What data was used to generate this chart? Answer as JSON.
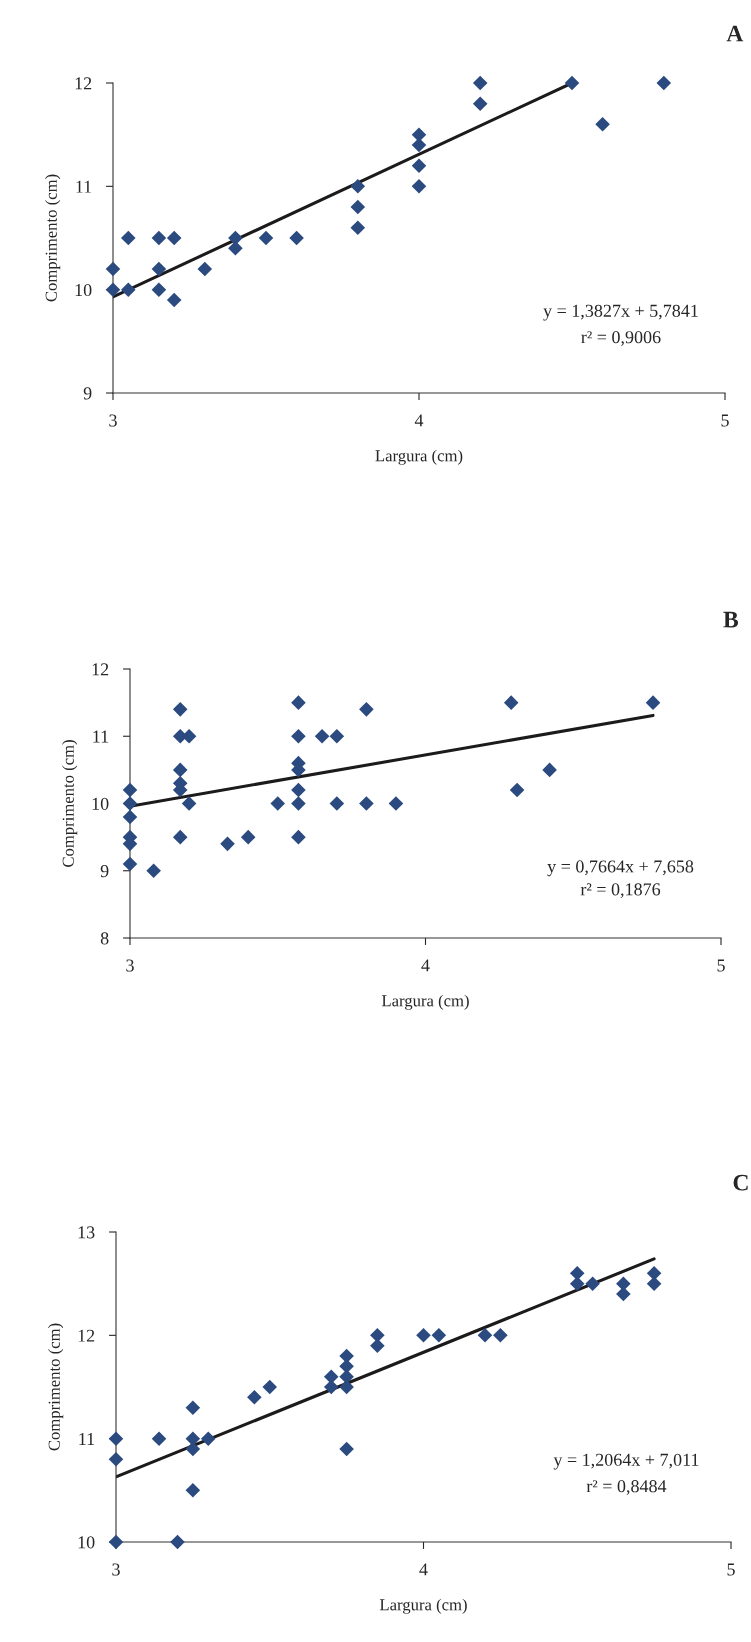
{
  "chart_data": [
    {
      "type": "scatter",
      "title": "A",
      "xlabel": "Largura (cm)",
      "ylabel": "Comprimento (cm)",
      "xlim": [
        3,
        5
      ],
      "xticks": [
        3,
        4,
        5
      ],
      "ylim": [
        9,
        12
      ],
      "yticks": [
        9,
        10,
        11,
        12
      ],
      "annotations": [
        "y = 1,3827x + 5,7841",
        "r² = 0,9006"
      ],
      "series": [
        {
          "marker": "diamond",
          "color": "#2b4a80",
          "x": [
            3.0,
            3.0,
            3.05,
            3.05,
            3.15,
            3.15,
            3.15,
            3.2,
            3.2,
            3.3,
            3.4,
            3.4,
            3.5,
            3.6,
            3.8,
            3.8,
            3.8,
            4.0,
            4.0,
            4.0,
            4.0,
            4.2,
            4.2,
            4.5,
            4.6,
            4.8
          ],
          "values": [
            10.2,
            10.0,
            10.5,
            10.0,
            10.5,
            10.2,
            10.0,
            10.5,
            9.9,
            10.2,
            10.5,
            10.4,
            10.5,
            10.5,
            11.0,
            10.8,
            10.6,
            11.5,
            11.4,
            11.2,
            11.0,
            12.0,
            11.8,
            12.0,
            11.6,
            12.0
          ]
        },
        {
          "type": "line",
          "color": "#1c1a1a",
          "x": [
            3.0,
            4.5
          ],
          "values": [
            9.93,
            12.0
          ]
        }
      ]
    },
    {
      "type": "scatter",
      "title": "B",
      "xlabel": "Largura (cm)",
      "ylabel": "Comprimento (cm)",
      "xlim": [
        3,
        5
      ],
      "xticks": [
        3,
        4,
        5
      ],
      "ylim": [
        8,
        12
      ],
      "yticks": [
        8,
        9,
        10,
        11,
        12
      ],
      "annotations": [
        "y = 0,7664x + 7,658",
        "r² = 0,1876"
      ],
      "series": [
        {
          "marker": "diamond",
          "color": "#2b4a80",
          "x": [
            3.0,
            3.0,
            3.0,
            3.0,
            3.0,
            3.0,
            3.08,
            3.17,
            3.17,
            3.17,
            3.17,
            3.17,
            3.17,
            3.2,
            3.2,
            3.33,
            3.4,
            3.5,
            3.57,
            3.57,
            3.57,
            3.57,
            3.57,
            3.57,
            3.57,
            3.65,
            3.7,
            3.7,
            3.8,
            3.8,
            3.9,
            4.29,
            4.31,
            4.42,
            4.77
          ],
          "values": [
            10.2,
            10.0,
            9.8,
            9.5,
            9.4,
            9.1,
            9.0,
            11.4,
            11.0,
            10.5,
            10.3,
            10.2,
            9.5,
            11.0,
            10.0,
            9.4,
            9.5,
            10.0,
            11.5,
            11.0,
            10.6,
            10.5,
            10.2,
            10.0,
            9.5,
            11.0,
            11.0,
            10.0,
            11.4,
            10.0,
            10.0,
            11.5,
            10.2,
            10.5,
            11.5
          ]
        },
        {
          "type": "line",
          "color": "#1c1a1a",
          "x": [
            3.0,
            4.77
          ],
          "values": [
            9.96,
            11.31
          ]
        }
      ]
    },
    {
      "type": "scatter",
      "title": "C",
      "xlabel": "Largura (cm)",
      "ylabel": "Comprimento (cm)",
      "xlim": [
        3,
        5
      ],
      "xticks": [
        3,
        4,
        5
      ],
      "ylim": [
        10,
        13
      ],
      "yticks": [
        10,
        11,
        12,
        13
      ],
      "annotations": [
        "y = 1,2064x + 7,011",
        "r² = 0,8484"
      ],
      "series": [
        {
          "marker": "diamond",
          "color": "#2b4a80",
          "x": [
            3.0,
            3.0,
            3.0,
            3.14,
            3.2,
            3.25,
            3.25,
            3.25,
            3.25,
            3.3,
            3.45,
            3.5,
            3.7,
            3.7,
            3.75,
            3.75,
            3.75,
            3.75,
            3.75,
            3.85,
            3.85,
            4.0,
            4.05,
            4.2,
            4.25,
            4.5,
            4.5,
            4.55,
            4.65,
            4.65,
            4.75,
            4.75
          ],
          "values": [
            11.0,
            10.8,
            10.0,
            11.0,
            10.0,
            11.3,
            11.0,
            10.9,
            10.5,
            11.0,
            11.4,
            11.5,
            11.6,
            11.5,
            11.8,
            11.7,
            11.6,
            11.5,
            10.9,
            12.0,
            11.9,
            12.0,
            12.0,
            12.0,
            12.0,
            12.6,
            12.5,
            12.5,
            12.5,
            12.4,
            12.6,
            12.5
          ]
        },
        {
          "type": "line",
          "color": "#1c1a1a",
          "x": [
            3.0,
            4.75
          ],
          "values": [
            10.63,
            12.74
          ]
        }
      ]
    }
  ]
}
